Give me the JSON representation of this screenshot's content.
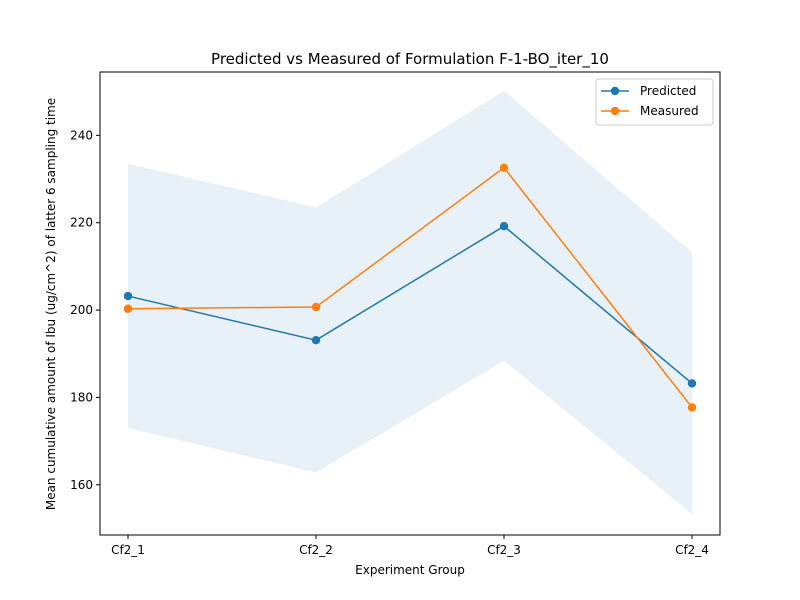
{
  "chart_data": {
    "type": "line",
    "title": "Predicted vs Measured of Formulation F-1-BO_iter_10",
    "xlabel": "Experiment Group",
    "ylabel": "Mean cumulative amount of Ibu (ug/cm^2) of latter 6 sampling time",
    "categories": [
      "Cf2_1",
      "Cf2_2",
      "Cf2_3",
      "Cf2_4"
    ],
    "ylim": [
      148.5,
      254.5
    ],
    "yticks": [
      160,
      180,
      200,
      220,
      240
    ],
    "grid": false,
    "legend_position": "top-right",
    "band": {
      "lower": [
        173.0,
        162.8,
        188.4,
        153.3
      ],
      "upper": [
        233.5,
        223.5,
        250.2,
        213.2
      ],
      "color": "#1f77b4",
      "opacity": 0.1
    },
    "series": [
      {
        "name": "Predicted",
        "values": [
          203.2,
          193.1,
          219.2,
          183.2
        ],
        "color": "#1f77b4"
      },
      {
        "name": "Measured",
        "values": [
          200.3,
          200.7,
          232.6,
          177.7
        ],
        "color": "#ff7f0e"
      }
    ]
  }
}
